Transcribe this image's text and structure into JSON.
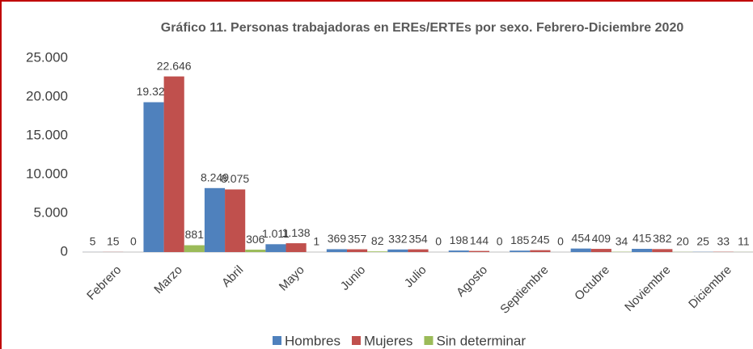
{
  "chart_data": {
    "type": "bar",
    "title": "Gráfico 11. Personas trabajadoras en EREs/ERTEs por sexo. Febrero-Diciembre 2020",
    "categories": [
      "Febrero",
      "Marzo",
      "Abril",
      "Mayo",
      "Junio",
      "Julio",
      "Agosto",
      "Septiembre",
      "Octubre",
      "Noviembre",
      "Diciembre"
    ],
    "series": [
      {
        "name": "Hombres",
        "color": "#4f81bd",
        "values": [
          5,
          19321,
          8249,
          1011,
          369,
          332,
          198,
          185,
          454,
          415,
          25
        ],
        "value_labels": [
          "5",
          "19.321",
          "8.249",
          "1.011",
          "369",
          "332",
          "198",
          "185",
          "454",
          "415",
          "25"
        ]
      },
      {
        "name": "Mujeres",
        "color": "#c0504d",
        "values": [
          15,
          22646,
          8075,
          1138,
          357,
          354,
          144,
          245,
          409,
          382,
          33
        ],
        "value_labels": [
          "15",
          "22.646",
          "8.075",
          "1.138",
          "357",
          "354",
          "144",
          "245",
          "409",
          "382",
          "33"
        ]
      },
      {
        "name": "Sin determinar",
        "color": "#9bbb59",
        "values": [
          0,
          881,
          306,
          1,
          82,
          0,
          0,
          0,
          34,
          20,
          11
        ],
        "value_labels": [
          "0",
          "881",
          "306",
          "1",
          "82",
          "0",
          "0",
          "0",
          "34",
          "20",
          "11"
        ]
      }
    ],
    "ylim": [
      0,
      25000
    ],
    "yticks": [
      0,
      {
        "value": 5000,
        "label": "5.000"
      },
      {
        "value": 10000,
        "label": "10.000"
      },
      {
        "value": 15000,
        "label": "15.000"
      },
      {
        "value": 20000,
        "label": "20.000"
      },
      {
        "value": 25000,
        "label": "25.000"
      }
    ],
    "grid": false,
    "legend": "bottom"
  }
}
